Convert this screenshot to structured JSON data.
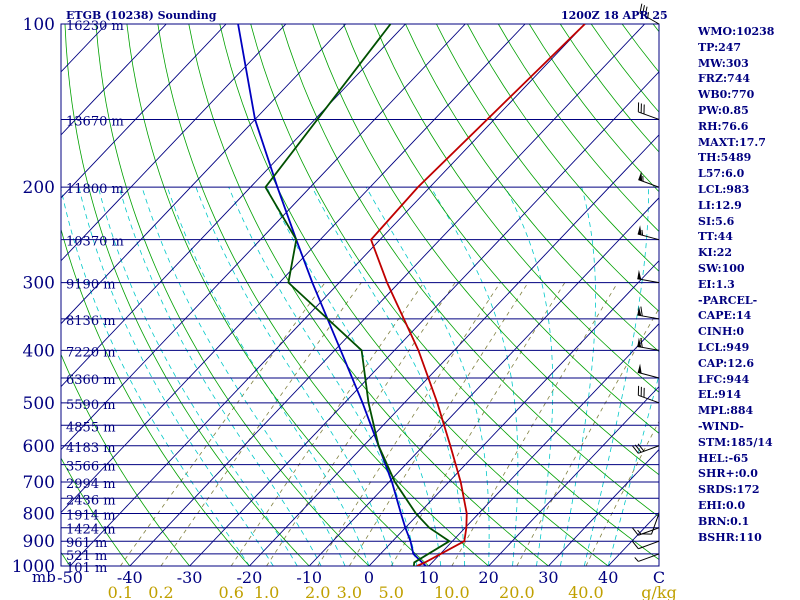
{
  "titles": {
    "left": "ETGB (10238) Sounding",
    "right": "1200Z 18 APR 25"
  },
  "colors": {
    "isobar": "#000080",
    "isotherm": "#000080",
    "dry_adiabat": "#00a000",
    "moist_adiabat": "#00c8c8",
    "mixing_ratio": "#808040",
    "temperature": "#c00000",
    "dewpoint": "#005000",
    "parcel": "#0000c0",
    "text": "#000080",
    "bottom_mixing_labels": "#c0a000"
  },
  "side_panel": [
    "WMO:10238",
    "TP:247",
    "MW:303",
    "FRZ:744",
    "WB0:770",
    "PW:0.85",
    "RH:76.6",
    "MAXT:17.7",
    "TH:5489",
    "L57:6.0",
    "LCL:983",
    "LI:12.9",
    "SI:5.6",
    "TT:44",
    "KI:22",
    "SW:100",
    "EI:1.3",
    "-PARCEL-",
    "CAPE:14",
    "CINH:0",
    "LCL:949",
    "CAP:12.6",
    "LFC:944",
    "EL:914",
    "MPL:884",
    "-WIND-",
    "STM:185/14",
    "HEL:-65",
    "SHR+:0.0",
    "SRDS:172",
    "EHI:0.0",
    "BRN:0.1",
    "BSHR:110"
  ],
  "chart_data": {
    "type": "line",
    "subtype": "skew-t log-p sounding",
    "y_axis_unit": "mb",
    "x_axis_unit": "C",
    "mixing_ratio_unit": "g/kg",
    "pressure_levels": [
      100,
      200,
      300,
      400,
      500,
      600,
      700,
      800,
      900,
      1000
    ],
    "pressure_tick_labels": [
      "100",
      "200",
      "300",
      "400",
      "500",
      "600",
      "700",
      "800",
      "900",
      "1000"
    ],
    "temp_ticks": [
      -50,
      -40,
      -30,
      -20,
      -10,
      0,
      10,
      20,
      30,
      40
    ],
    "temp_tick_labels": [
      "-50",
      "-40",
      "-30",
      "-20",
      "-10",
      "0",
      "10",
      "20",
      "30",
      "40"
    ],
    "mixing_ratio_labels": [
      "0.1",
      "0.2",
      "0.6",
      "1.0",
      "2.0",
      "3.0",
      "5.0",
      "10.0",
      "20.0",
      "40.0"
    ],
    "mixing_ratio_values": [
      0.1,
      0.2,
      0.6,
      1.0,
      2.0,
      3.0,
      5.0,
      10.0,
      20.0,
      40.0
    ],
    "height_labels": [
      {
        "p": 100,
        "label": "16230 m"
      },
      {
        "p": 150,
        "label": "13670 m"
      },
      {
        "p": 200,
        "label": "11800 m"
      },
      {
        "p": 250,
        "label": "10370 m"
      },
      {
        "p": 300,
        "label": "9190 m"
      },
      {
        "p": 350,
        "label": "8136 m"
      },
      {
        "p": 400,
        "label": "7220 m"
      },
      {
        "p": 450,
        "label": "6360 m"
      },
      {
        "p": 500,
        "label": "5590 m"
      },
      {
        "p": 550,
        "label": "4855 m"
      },
      {
        "p": 600,
        "label": "4183 m"
      },
      {
        "p": 650,
        "label": "3566 m"
      },
      {
        "p": 700,
        "label": "2994 m"
      },
      {
        "p": 750,
        "label": "2436 m"
      },
      {
        "p": 800,
        "label": "1914 m"
      },
      {
        "p": 850,
        "label": "1424 m"
      },
      {
        "p": 900,
        "label": "961 m"
      },
      {
        "p": 950,
        "label": "521 m"
      },
      {
        "p": 1000,
        "label": "101 m"
      }
    ],
    "temperature": [
      {
        "p": 1000,
        "t": 8.0
      },
      {
        "p": 985,
        "t": 8.8
      },
      {
        "p": 900,
        "t": 12.0
      },
      {
        "p": 850,
        "t": 10.2
      },
      {
        "p": 800,
        "t": 8.0
      },
      {
        "p": 700,
        "t": 2.0
      },
      {
        "p": 600,
        "t": -5.5
      },
      {
        "p": 500,
        "t": -14.5
      },
      {
        "p": 400,
        "t": -26.0
      },
      {
        "p": 300,
        "t": -42.0
      },
      {
        "p": 250,
        "t": -51.5
      },
      {
        "p": 200,
        "t": -52.0
      },
      {
        "p": 100,
        "t": -50.0
      }
    ],
    "dewpoint": [
      {
        "p": 1000,
        "t": 7.5
      },
      {
        "p": 985,
        "t": 7.0
      },
      {
        "p": 900,
        "t": 9.5
      },
      {
        "p": 850,
        "t": 4.0
      },
      {
        "p": 800,
        "t": -0.5
      },
      {
        "p": 700,
        "t": -9.0
      },
      {
        "p": 600,
        "t": -17.5
      },
      {
        "p": 500,
        "t": -26.0
      },
      {
        "p": 400,
        "t": -35.5
      },
      {
        "p": 300,
        "t": -58.5
      },
      {
        "p": 250,
        "t": -64.0
      },
      {
        "p": 200,
        "t": -77.5
      },
      {
        "p": 100,
        "t": -82.5
      }
    ],
    "parcel": [
      {
        "p": 1000,
        "t": 9.5
      },
      {
        "p": 950,
        "t": 5.5
      },
      {
        "p": 900,
        "t": 3.0
      },
      {
        "p": 850,
        "t": 0.0
      },
      {
        "p": 800,
        "t": -3.0
      },
      {
        "p": 700,
        "t": -9.5
      },
      {
        "p": 600,
        "t": -17.5
      },
      {
        "p": 500,
        "t": -27.0
      },
      {
        "p": 400,
        "t": -39.0
      },
      {
        "p": 300,
        "t": -54.5
      },
      {
        "p": 250,
        "t": -64.0
      },
      {
        "p": 200,
        "t": -75.5
      },
      {
        "p": 150,
        "t": -90.0
      },
      {
        "p": 100,
        "t": -108.0
      }
    ],
    "wind_barbs": [
      {
        "p": 100,
        "dir": 300,
        "spd": 35
      },
      {
        "p": 150,
        "dir": 290,
        "spd": 30
      },
      {
        "p": 200,
        "dir": 290,
        "spd": 55
      },
      {
        "p": 250,
        "dir": 285,
        "spd": 55
      },
      {
        "p": 300,
        "dir": 280,
        "spd": 50
      },
      {
        "p": 350,
        "dir": 280,
        "spd": 60
      },
      {
        "p": 400,
        "dir": 280,
        "spd": 60
      },
      {
        "p": 450,
        "dir": 285,
        "spd": 50
      },
      {
        "p": 500,
        "dir": 290,
        "spd": 30
      },
      {
        "p": 600,
        "dir": 250,
        "spd": 30
      },
      {
        "p": 800,
        "dir": 200,
        "spd": 10
      },
      {
        "p": 850,
        "dir": 250,
        "spd": 15
      },
      {
        "p": 900,
        "dir": 250,
        "spd": 10
      },
      {
        "p": 950,
        "dir": 250,
        "spd": 5
      }
    ],
    "xlim": [
      -50,
      50
    ],
    "ylim": [
      1000,
      100
    ]
  }
}
